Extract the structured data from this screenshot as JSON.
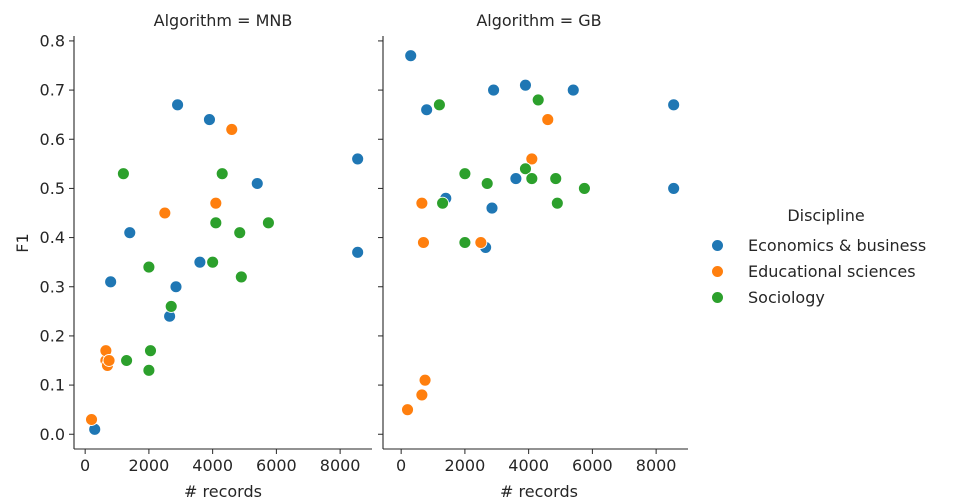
{
  "chart_data": {
    "type": "scatter",
    "legend": {
      "title": "Discipline",
      "placement": "right",
      "entries": [
        {
          "name": "Economics & business",
          "color": "#1f77b4"
        },
        {
          "name": "Educational sciences",
          "color": "#ff7f0e"
        },
        {
          "name": "Sociology",
          "color": "#2ca02c"
        }
      ]
    },
    "xlabel": "# records",
    "ylabel": "F1",
    "xlim": [
      -350,
      9000
    ],
    "ylim": [
      -0.03,
      0.81
    ],
    "xticks": [
      0,
      2000,
      4000,
      6000,
      8000
    ],
    "yticks": [
      0.0,
      0.1,
      0.2,
      0.3,
      0.4,
      0.5,
      0.6,
      0.7,
      0.8
    ],
    "xtick_labels": [
      "0",
      "2000",
      "4000",
      "6000",
      "8000"
    ],
    "ytick_labels": [
      "0.0",
      "0.1",
      "0.2",
      "0.3",
      "0.4",
      "0.5",
      "0.6",
      "0.7",
      "0.8"
    ],
    "panels": [
      {
        "title": "Algorithm = MNB",
        "series": [
          {
            "name": "Economics & business",
            "x": [
              300,
              800,
              1400,
              2650,
              2850,
              2900,
              3600,
              3900,
              5400,
              8550,
              8550
            ],
            "y": [
              0.01,
              0.31,
              0.41,
              0.24,
              0.3,
              0.67,
              0.35,
              0.64,
              0.51,
              0.56,
              0.37
            ]
          },
          {
            "name": "Educational sciences",
            "x": [
              200,
              650,
              650,
              700,
              750,
              2500,
              4100,
              4600
            ],
            "y": [
              0.03,
              0.15,
              0.17,
              0.14,
              0.15,
              0.45,
              0.47,
              0.62
            ]
          },
          {
            "name": "Sociology",
            "x": [
              1200,
              1300,
              2000,
              2000,
              2050,
              2700,
              4000,
              4100,
              4300,
              4850,
              4900,
              5750
            ],
            "y": [
              0.53,
              0.15,
              0.13,
              0.34,
              0.17,
              0.26,
              0.35,
              0.43,
              0.53,
              0.41,
              0.32,
              0.43
            ]
          }
        ]
      },
      {
        "title": "Algorithm = GB",
        "series": [
          {
            "name": "Economics & business",
            "x": [
              300,
              800,
              1400,
              2650,
              2850,
              2900,
              3600,
              3900,
              5400,
              8550,
              8550
            ],
            "y": [
              0.77,
              0.66,
              0.48,
              0.38,
              0.46,
              0.7,
              0.52,
              0.71,
              0.7,
              0.67,
              0.5
            ]
          },
          {
            "name": "Educational sciences",
            "x": [
              200,
              650,
              650,
              700,
              750,
              2500,
              4100,
              4600
            ],
            "y": [
              0.05,
              0.08,
              0.47,
              0.39,
              0.11,
              0.39,
              0.56,
              0.64
            ]
          },
          {
            "name": "Sociology",
            "x": [
              1200,
              1300,
              2000,
              2000,
              2700,
              3900,
              4100,
              4300,
              4850,
              4900,
              5750
            ],
            "y": [
              0.67,
              0.47,
              0.53,
              0.39,
              0.51,
              0.54,
              0.52,
              0.68,
              0.52,
              0.47,
              0.5
            ]
          }
        ]
      }
    ]
  }
}
